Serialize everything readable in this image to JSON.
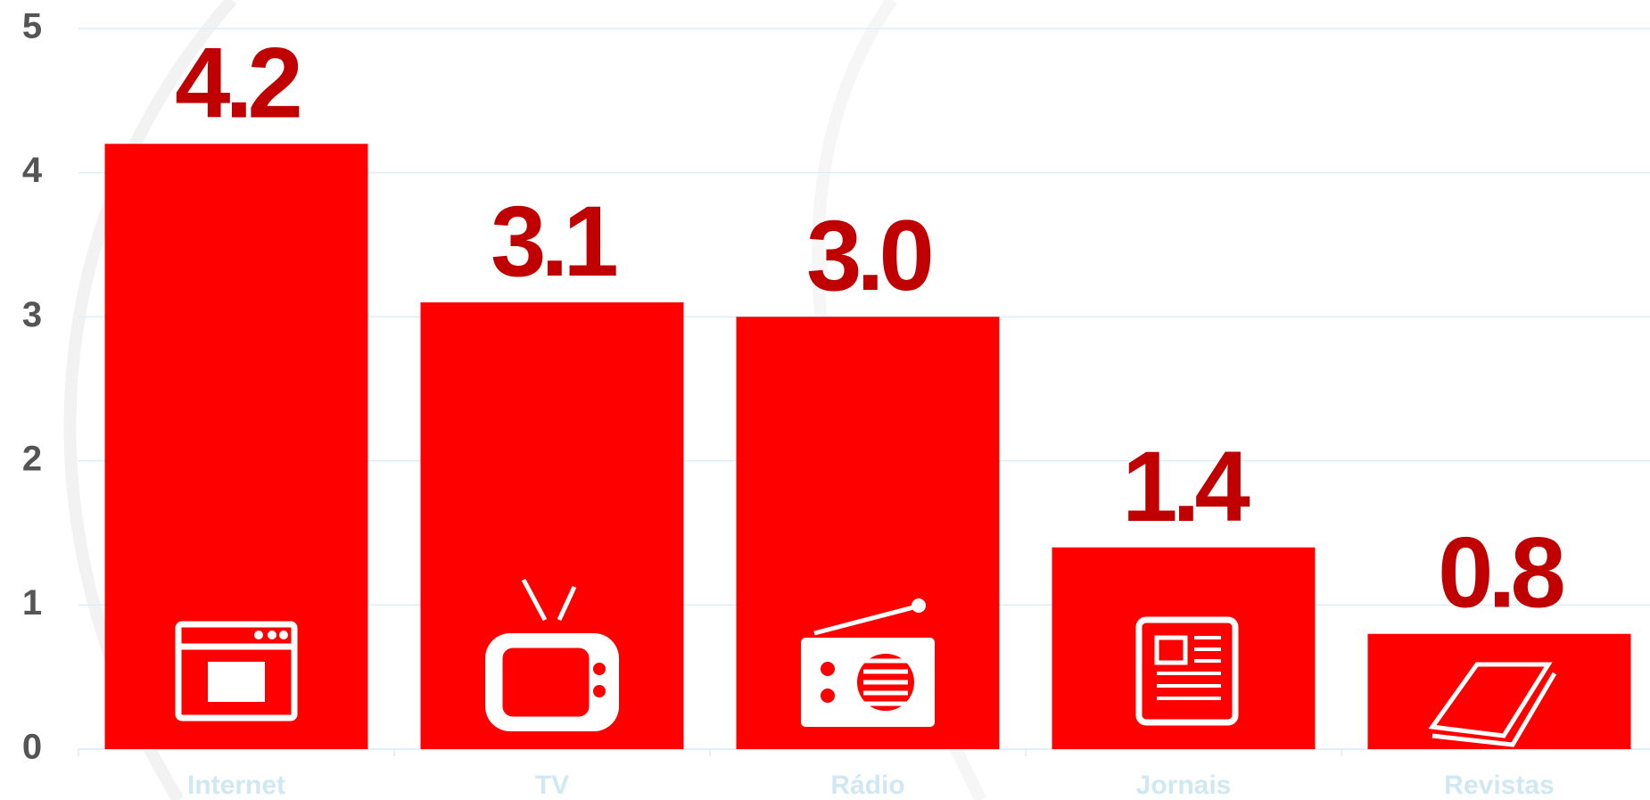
{
  "chart_data": {
    "type": "bar",
    "categories": [
      "Internet",
      "TV",
      "Rádio",
      "Jornais",
      "Revistas"
    ],
    "values": [
      4.2,
      3.1,
      3.0,
      1.4,
      0.8
    ],
    "value_labels": [
      "4.2",
      "3.1",
      "3.0",
      "1.4",
      "0.8"
    ],
    "color": "#ff0000",
    "ylim": [
      0,
      5
    ],
    "yticks": [
      0,
      1,
      2,
      3,
      4,
      5
    ],
    "grid": true
  }
}
